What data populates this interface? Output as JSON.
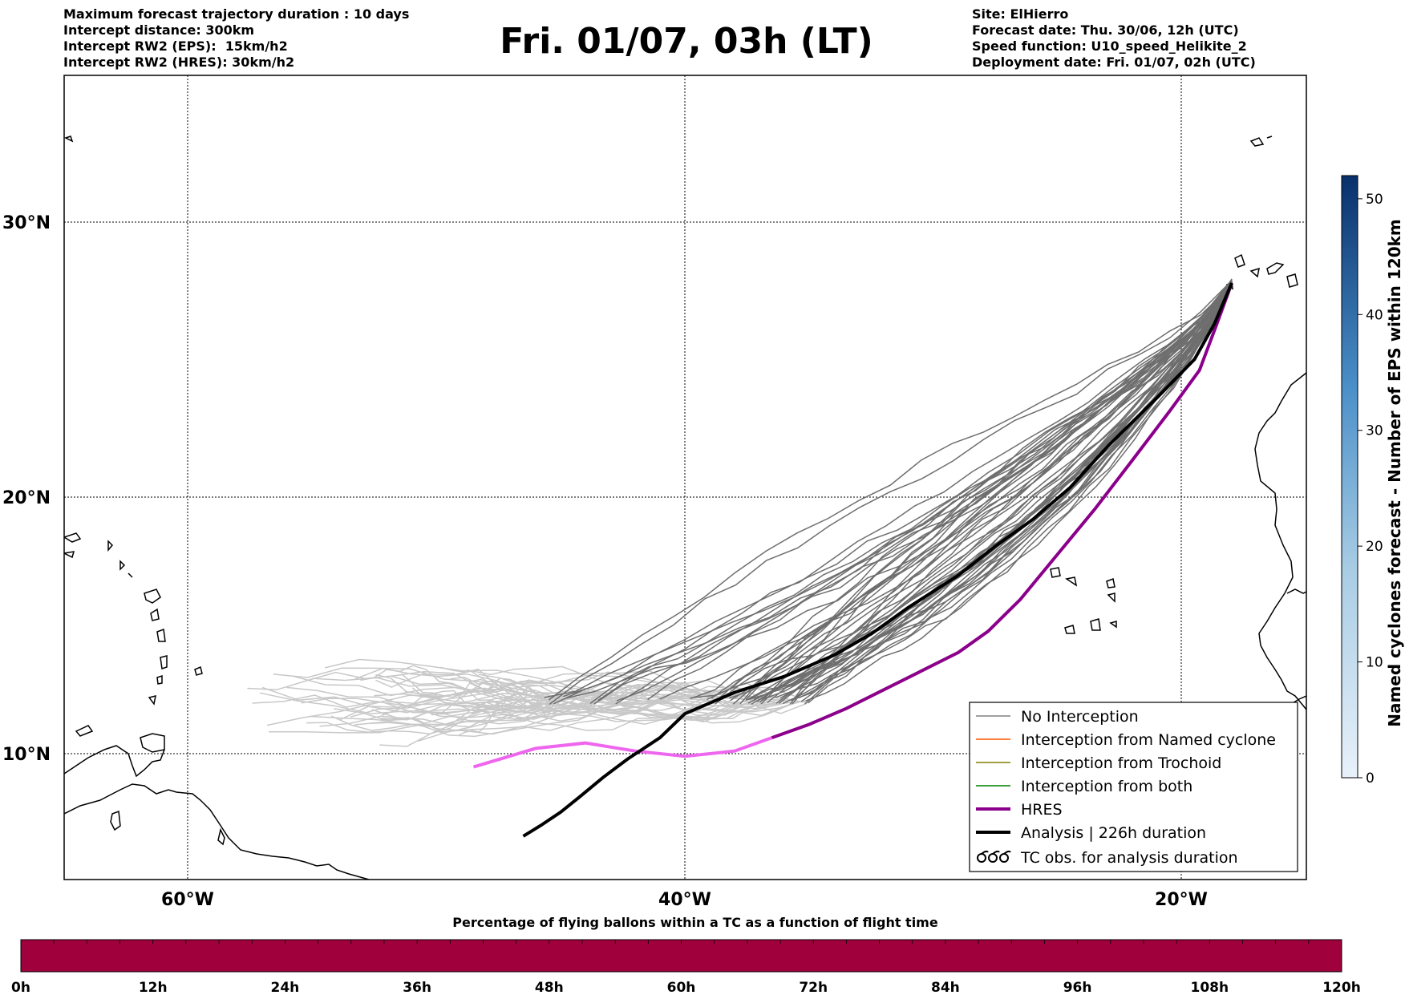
{
  "header": {
    "left": [
      "Maximum forecast trajectory duration : 10 days",
      "Intercept distance: 300km",
      "Intercept RW2 (EPS):  15km/h2",
      "Intercept RW2 (HRES): 30km/h2"
    ],
    "title": "Fri. 01/07, 03h (LT)",
    "right": [
      "Site: ElHierro",
      "Forecast date: Thu. 30/06, 12h (UTC)",
      "Speed function: U10_speed_Helikite_2",
      "Deployment date: Fri. 01/07, 02h (UTC)"
    ]
  },
  "map": {
    "lon_range": [
      -65,
      15
    ],
    "lat_range": [
      5,
      34
    ],
    "lat_labels": [
      "30°N",
      "20°N",
      "10°N"
    ],
    "lon_labels": [
      "60°W",
      "40°W",
      "20°W"
    ]
  },
  "legend": {
    "items": [
      {
        "label": "No Interception",
        "color": "#808080"
      },
      {
        "label": "Interception from Named cyclone",
        "color": "#ff5500"
      },
      {
        "label": "Interception from Trochoid",
        "color": "#808000"
      },
      {
        "label": "Interception from both",
        "color": "#008000"
      },
      {
        "label": "HRES",
        "color": "#8b008b"
      },
      {
        "label": "Analysis | 226h duration",
        "color": "#000000"
      },
      {
        "label": "TC obs. for analysis duration",
        "color": "#000000",
        "icon": "cyclone-symbols-icon"
      }
    ]
  },
  "colorbar_right": {
    "label": "Named cyclones forecast - Number of EPS within 120km",
    "ticks": [
      "0",
      "10",
      "20",
      "30",
      "40",
      "50"
    ],
    "max": 52,
    "colors": [
      "#e8f1fa",
      "#08306b"
    ]
  },
  "colorbar_bottom": {
    "title": "Percentage of flying ballons within a TC as a function of flight time",
    "ticks": [
      "0h",
      "12h",
      "24h",
      "36h",
      "48h",
      "60h",
      "72h",
      "84h",
      "96h",
      "108h",
      "120h"
    ],
    "color": "#a0003c"
  },
  "tracks": {
    "colors": {
      "eps": "#6e6e6e",
      "eps_light": "#c8c8c8",
      "hres": "#8b008b",
      "hres_light": "#ee66ee",
      "analysis": "#000000"
    },
    "analysis": [
      [
        -18,
        27.5
      ],
      [
        -18.7,
        26
      ],
      [
        -19.5,
        24.7
      ],
      [
        -21,
        23.3
      ],
      [
        -23,
        21.5
      ],
      [
        -24.5,
        20
      ],
      [
        -26,
        18.8
      ],
      [
        -27.5,
        17.8
      ],
      [
        -29,
        16.7
      ],
      [
        -31,
        15.5
      ],
      [
        -32.5,
        14.5
      ],
      [
        -34,
        13.7
      ],
      [
        -36,
        12.9
      ],
      [
        -38,
        12.3
      ],
      [
        -40,
        11.5
      ],
      [
        -41,
        10.6
      ],
      [
        -42.3,
        9.8
      ],
      [
        -43.3,
        9.1
      ],
      [
        -44.2,
        8.4
      ],
      [
        -45,
        7.8
      ],
      [
        -45.8,
        7.3
      ],
      [
        -46.5,
        6.9
      ]
    ],
    "hres": [
      [
        -18,
        27.5
      ],
      [
        -18.6,
        26
      ],
      [
        -19.3,
        24.3
      ],
      [
        -20.5,
        22.8
      ],
      [
        -22,
        21
      ],
      [
        -23.5,
        19.2
      ],
      [
        -25,
        17.5
      ],
      [
        -26.5,
        15.8
      ],
      [
        -27.8,
        14.6
      ],
      [
        -29,
        13.8
      ],
      [
        -30.5,
        13.1
      ],
      [
        -32,
        12.4
      ],
      [
        -33.5,
        11.7
      ],
      [
        -35,
        11.1
      ],
      [
        -36.5,
        10.6
      ],
      [
        -38,
        10.1
      ],
      [
        -40,
        9.9
      ],
      [
        -42,
        10.1
      ],
      [
        -44,
        10.4
      ],
      [
        -46,
        10.2
      ],
      [
        -48.5,
        9.5
      ]
    ]
  }
}
